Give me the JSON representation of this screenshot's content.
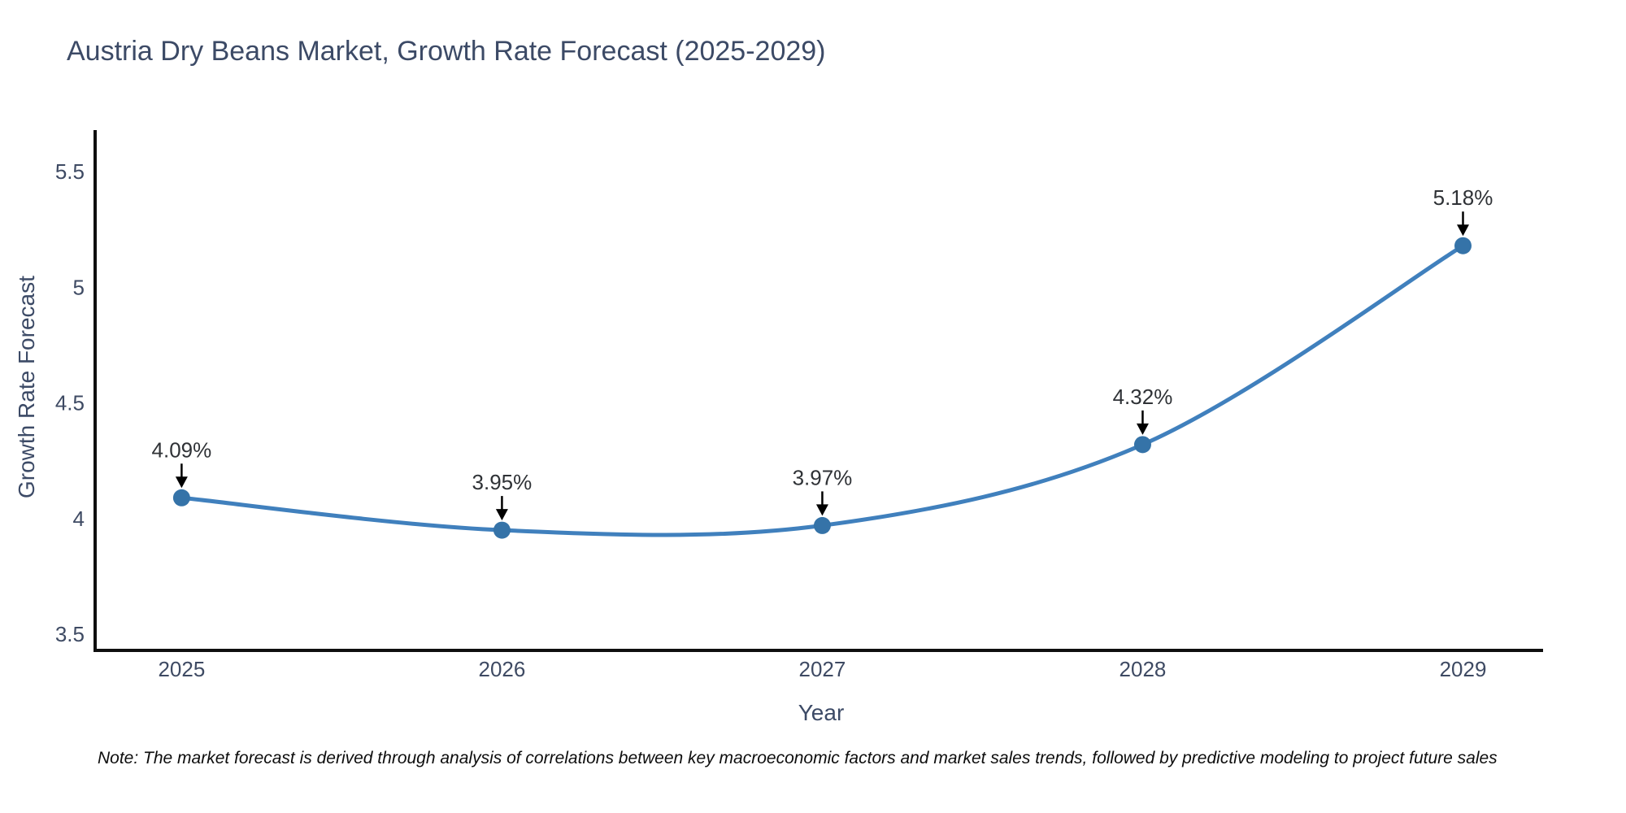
{
  "chart_data": {
    "type": "line",
    "title": "Austria Dry Beans Market, Growth Rate Forecast (2025-2029)",
    "xlabel": "Year",
    "ylabel": "Growth Rate Forecast",
    "x": [
      2025,
      2026,
      2027,
      2028,
      2029
    ],
    "values": [
      4.09,
      3.95,
      3.97,
      4.32,
      5.18
    ],
    "point_labels": [
      "4.09%",
      "3.95%",
      "3.97%",
      "4.32%",
      "5.18%"
    ],
    "xtick_labels": [
      "2025",
      "2026",
      "2027",
      "2028",
      "2029"
    ],
    "ytick_values": [
      3.5,
      4,
      4.5,
      5,
      5.5
    ],
    "ytick_labels": [
      "3.5",
      "4",
      "4.5",
      "5",
      "5.5"
    ],
    "xlim": [
      2024.73,
      2029.25
    ],
    "ylim": [
      3.43,
      5.68
    ],
    "grid": false,
    "legend": null,
    "line_shape": "spline",
    "line_color": "#4080bd",
    "marker_color": "#3573a8",
    "annotation_arrow_color": "#000000",
    "axis_line_color": "#0f0f0f",
    "note": "Note: The market forecast is derived through analysis of correlations between key macroeconomic factors and market sales trends, followed by predictive modeling to project future sales"
  }
}
